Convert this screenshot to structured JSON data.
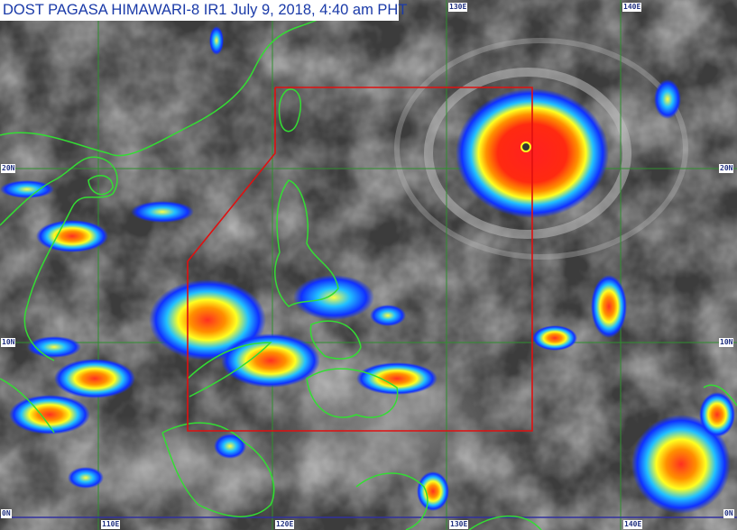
{
  "title": "DOST PAGASA HIMAWARI-8 IR1 July 9, 2018, 4:40 am PHT",
  "grid": {
    "longitude_labels": [
      "110E",
      "120E",
      "130E",
      "140E"
    ],
    "latitude_labels": [
      "20N",
      "10N",
      "0N"
    ],
    "grid_color": "#2f8f2f",
    "equator_color": "#3030a0"
  },
  "par_boundary_color": "#e01010",
  "coastline_color": "#33dd33",
  "cloud_colors": [
    "#1030ff",
    "#20c0ff",
    "#ffff20",
    "#ff9000",
    "#ff2020"
  ]
}
